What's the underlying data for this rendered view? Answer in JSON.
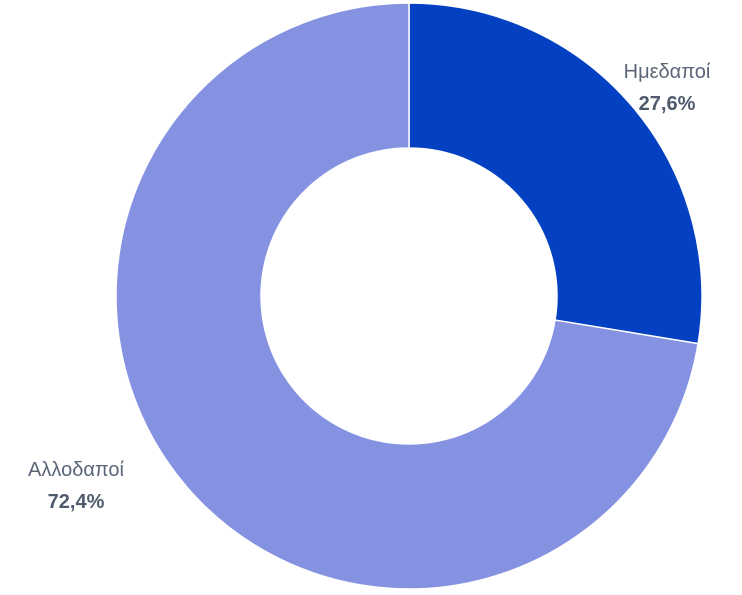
{
  "chart_data": {
    "type": "pie",
    "style": "donut",
    "title": "",
    "categories": [
      "Ημεδαποί",
      "Αλλοδαποί"
    ],
    "values": [
      27.6,
      72.4
    ],
    "value_labels": [
      "27,6%",
      "72,4%"
    ],
    "colors": [
      "#0340c2",
      "#8592e2"
    ],
    "legend": "none",
    "start_angle": "12 o'clock, clockwise"
  }
}
